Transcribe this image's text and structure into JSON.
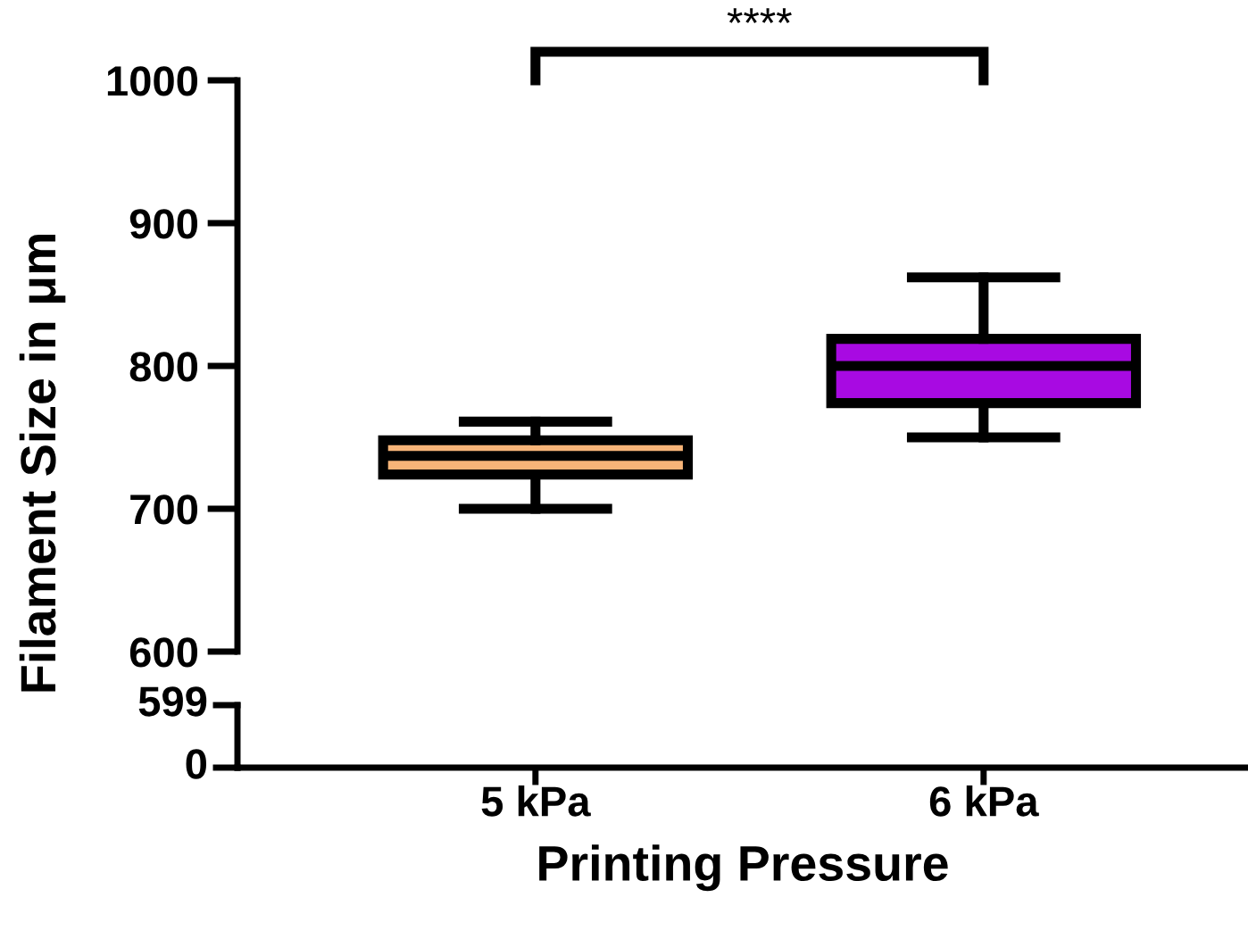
{
  "chart_data": [
    {
      "type": "box",
      "categories": [
        "5 kPa",
        "6 kPa"
      ],
      "xlabel": "Printing Pressure",
      "ylabel": "Filament Size in μm",
      "ylim": [
        600,
        1000
      ],
      "yticks": [
        600,
        700,
        800,
        900,
        1000
      ],
      "colors": [
        "#f7b478",
        "#a80ae2"
      ],
      "boxes": [
        {
          "low": 700,
          "q1": 724,
          "median": 737,
          "q3": 748,
          "high": 761
        },
        {
          "low": 750,
          "q1": 774,
          "median": 800,
          "q3": 819,
          "high": 862
        }
      ],
      "annotations": [
        "****"
      ]
    },
    {
      "type": "other",
      "annotations": [
        "599",
        "0"
      ]
    }
  ]
}
